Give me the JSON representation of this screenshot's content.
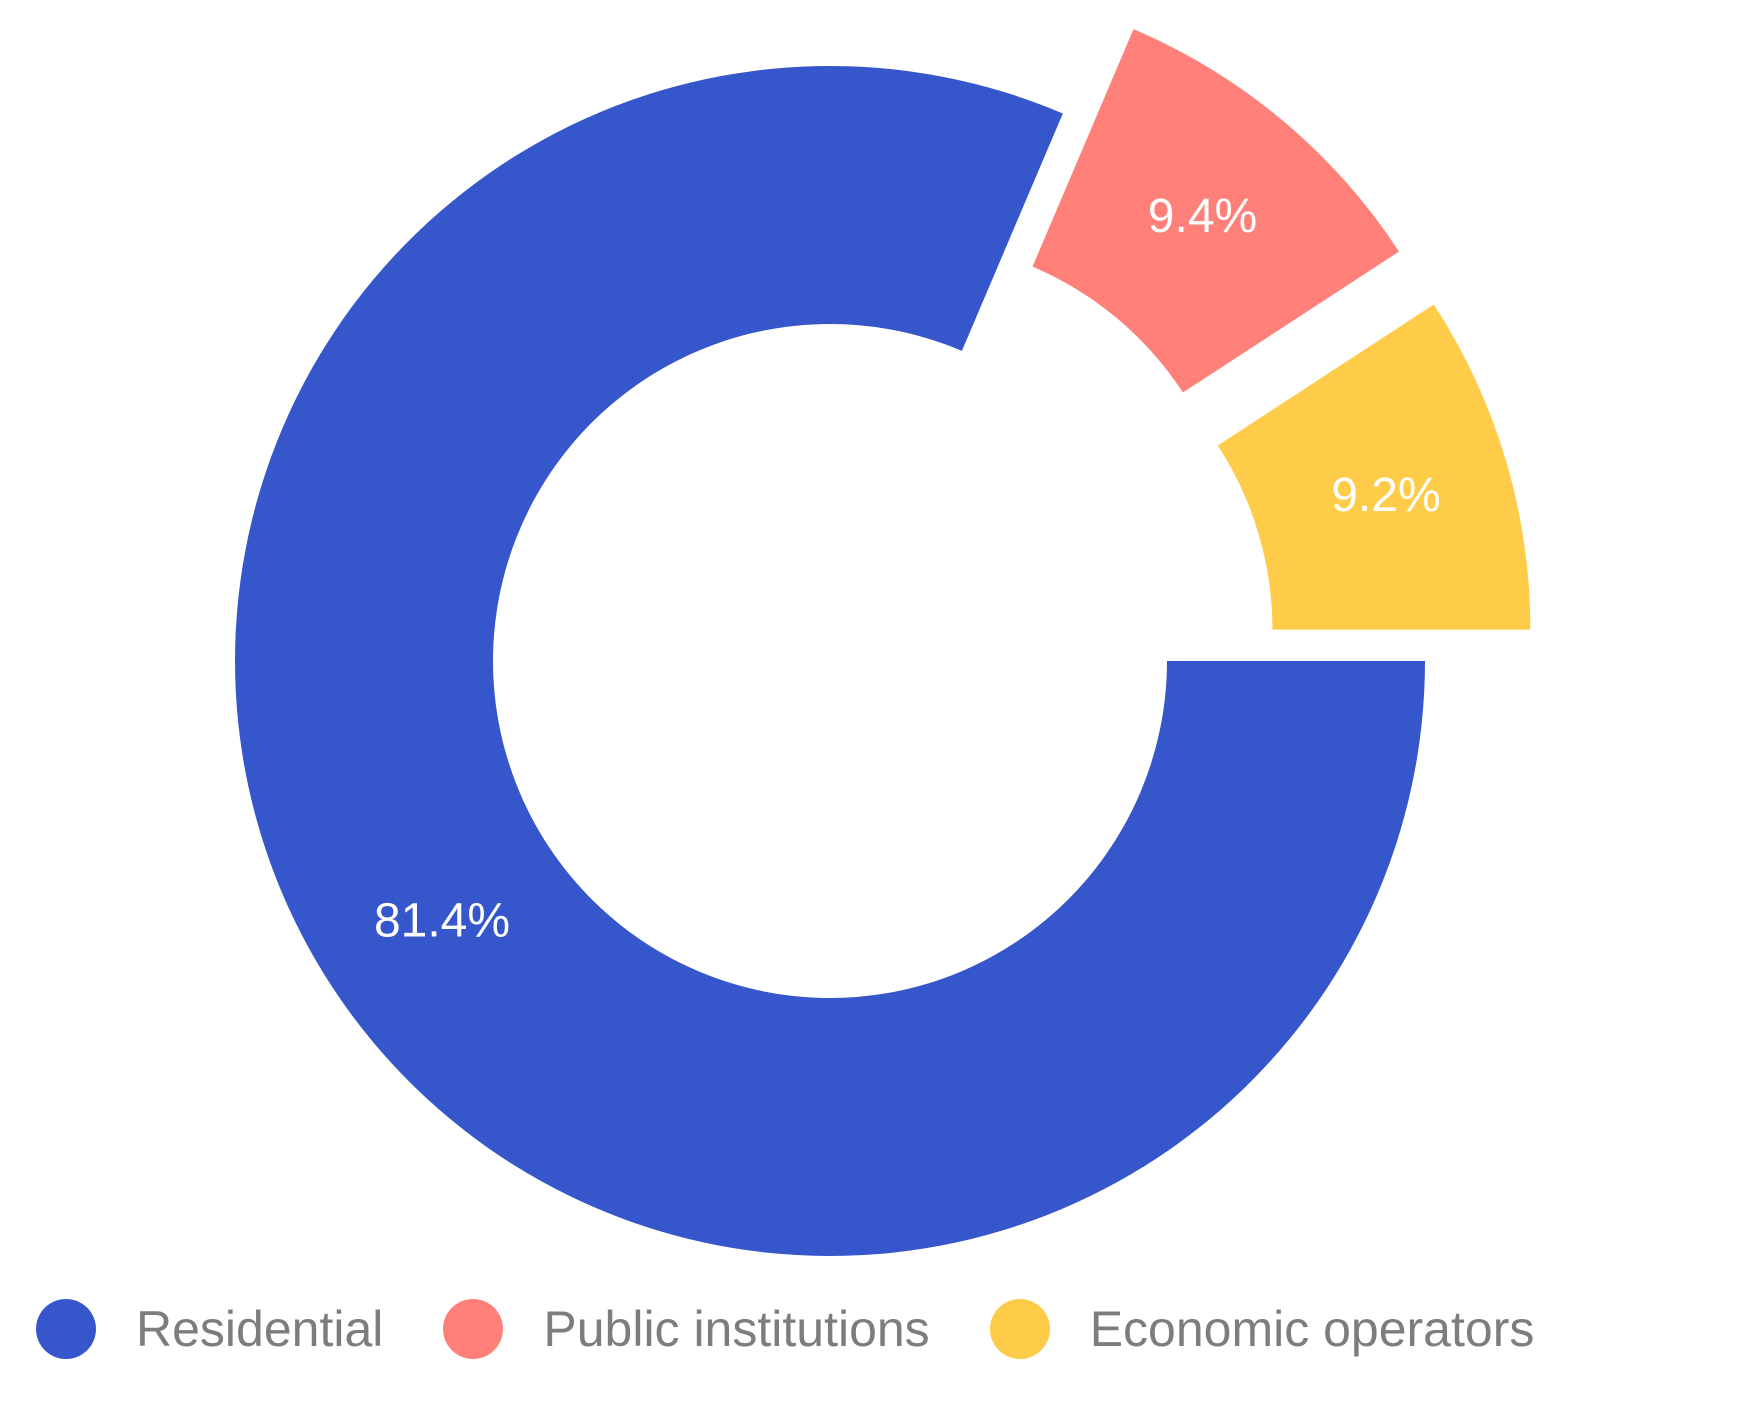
{
  "chart_data": {
    "type": "pie",
    "style": "donut",
    "labels": [
      "Residential",
      "Public institutions",
      "Economic operators"
    ],
    "values": [
      81.4,
      9.4,
      9.2
    ],
    "value_labels": [
      "81.4%",
      "9.4%",
      "9.2%"
    ],
    "colors": [
      "#3656cc",
      "#ff8079",
      "#ffcc4a"
    ],
    "exploded": [
      false,
      true,
      true
    ],
    "legend_position": "bottom",
    "title": ""
  }
}
